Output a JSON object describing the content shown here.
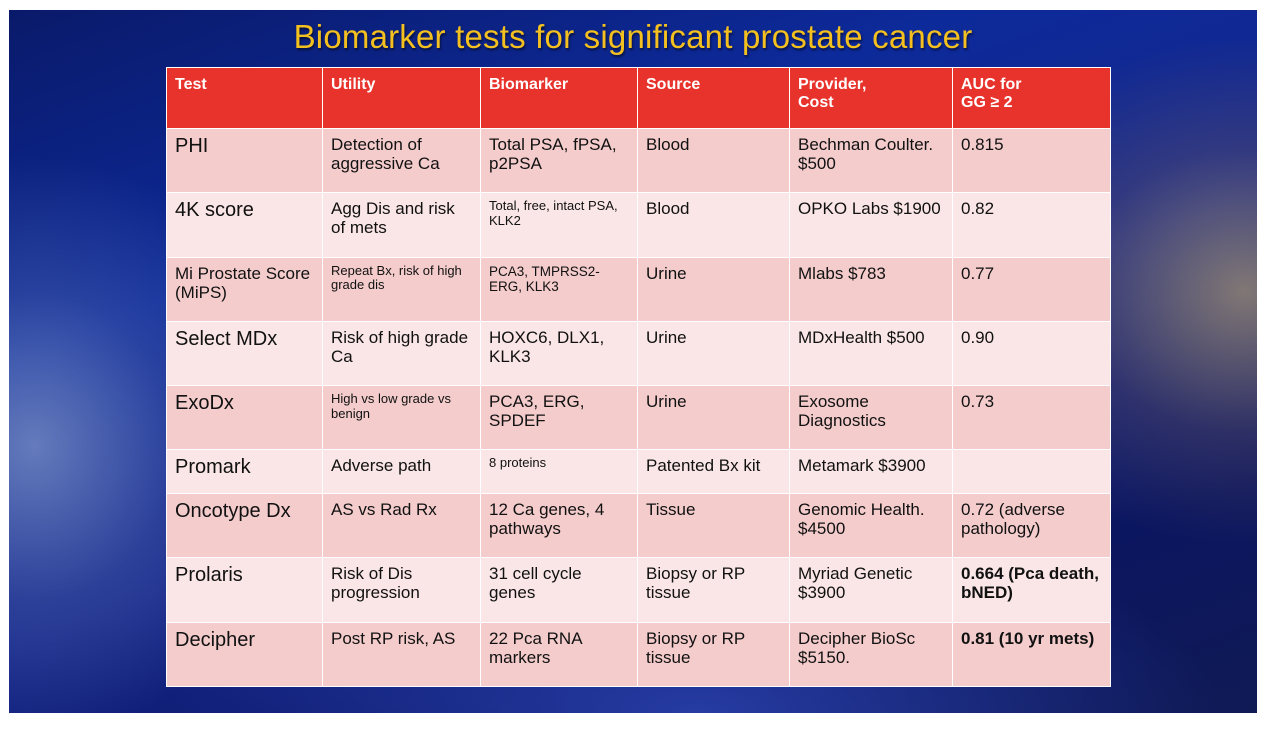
{
  "title": "Biomarker tests for significant prostate cancer",
  "headers": [
    "Test",
    "Utility",
    "Biomarker",
    "Source",
    "Provider,\nCost",
    "AUC for\nGG ≥ 2"
  ],
  "rows": [
    {
      "test": "PHI",
      "utility": "Detection of aggressive Ca",
      "biomarker": "Total PSA, fPSA, p2PSA",
      "source": "Blood",
      "provider": "Bechman Coulter. $500",
      "auc": "0.815"
    },
    {
      "test": "4K score",
      "utility": "Agg Dis and risk of mets",
      "biomarker": "Total, free, intact PSA, KLK2",
      "source": "Blood",
      "provider": "OPKO Labs $1900",
      "auc": "0.82"
    },
    {
      "test": "Mi Prostate Score (MiPS)",
      "utility": "Repeat Bx, risk of high grade dis",
      "biomarker": "PCA3, TMPRSS2-ERG, KLK3",
      "source": "Urine",
      "provider": "Mlabs $783",
      "auc": "0.77"
    },
    {
      "test": "Select MDx",
      "utility": "Risk of high grade Ca",
      "biomarker": "HOXC6, DLX1, KLK3",
      "source": "Urine",
      "provider": "MDxHealth $500",
      "auc": "0.90"
    },
    {
      "test": "ExoDx",
      "utility": "High vs low grade vs benign",
      "biomarker": "PCA3, ERG, SPDEF",
      "source": "Urine",
      "provider": "Exosome Diagnostics",
      "auc": "0.73"
    },
    {
      "test": "Promark",
      "utility": "Adverse path",
      "biomarker": "8 proteins",
      "source": "Patented Bx kit",
      "provider": "Metamark $3900",
      "auc": ""
    },
    {
      "test": "Oncotype Dx",
      "utility": "AS vs Rad Rx",
      "biomarker": "12 Ca genes, 4 pathways",
      "source": "Tissue",
      "provider": "Genomic Health. $4500",
      "auc": "0.72 (adverse pathology)"
    },
    {
      "test": "Prolaris",
      "utility": "Risk of Dis progression",
      "biomarker": "31 cell cycle genes",
      "source": "Biopsy or RP tissue",
      "provider": "Myriad Genetic $3900",
      "auc": "0.664 (Pca death, bNED)"
    },
    {
      "test": "Decipher",
      "utility": "Post RP risk, AS",
      "biomarker": "22 Pca RNA markers",
      "source": "Biopsy or RP tissue",
      "provider": "Decipher BioSc $5150.",
      "auc": "0.81 (10 yr mets)"
    }
  ],
  "colors": {
    "title": "#f4c020",
    "header_bg": "#e8332c",
    "row_odd": "#f4cccc",
    "row_even": "#fae6e6"
  }
}
